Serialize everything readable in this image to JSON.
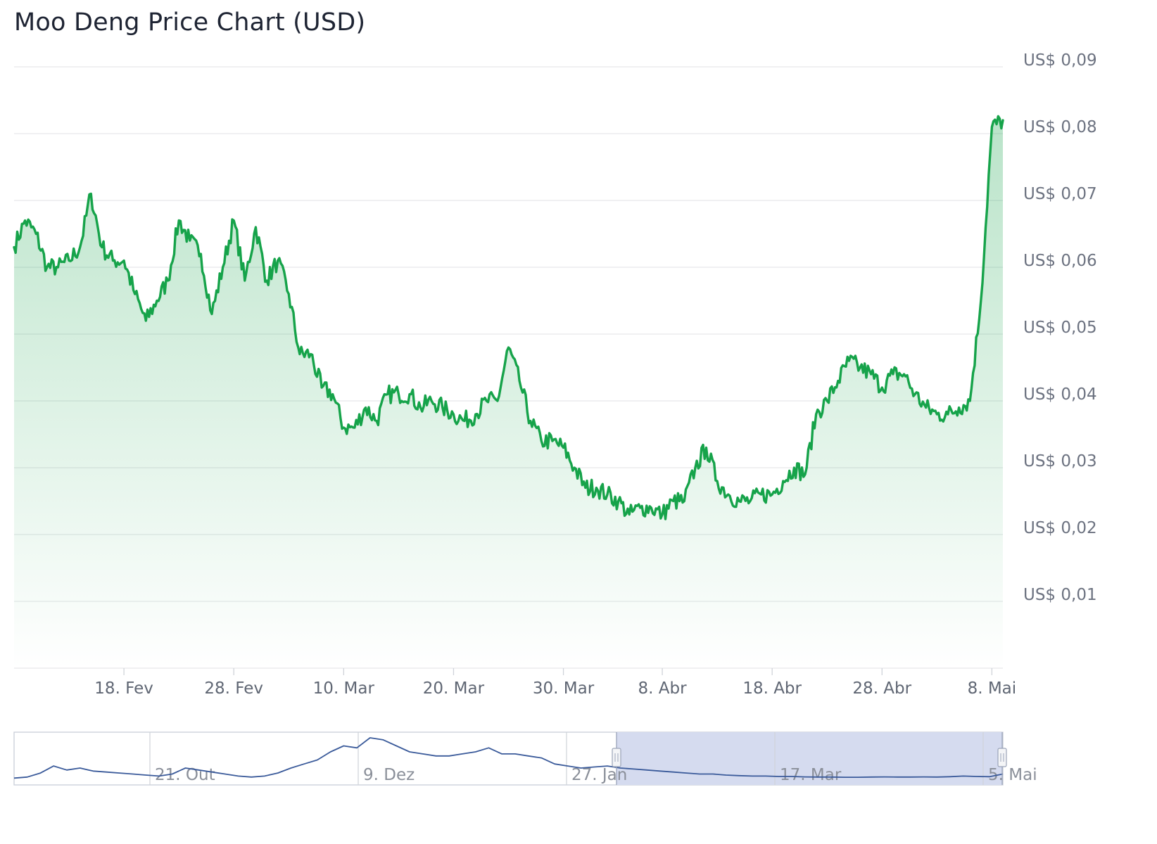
{
  "title": "Moo Deng Price Chart (USD)",
  "chart_data": [
    {
      "type": "area",
      "title": "Moo Deng Price Chart (USD)",
      "xlabel": "",
      "ylabel": "",
      "ylim": [
        0.0,
        0.09
      ],
      "y_ticks": [
        "US$ 0,09",
        "US$ 0,08",
        "US$ 0,07",
        "US$ 0,06",
        "US$ 0,05",
        "US$ 0,04",
        "US$ 0,03",
        "US$ 0,02",
        "US$ 0,01"
      ],
      "y_tick_values": [
        0.09,
        0.08,
        0.07,
        0.06,
        0.05,
        0.04,
        0.03,
        0.02,
        0.01
      ],
      "x_ticks": [
        "18. Fev",
        "28. Fev",
        "10. Mar",
        "20. Mar",
        "30. Mar",
        "8. Abr",
        "18. Abr",
        "28. Abr",
        "8. Mai"
      ],
      "x_tick_dates": [
        "2025-02-18",
        "2025-02-28",
        "2025-03-10",
        "2025-03-20",
        "2025-03-30",
        "2025-04-08",
        "2025-04-18",
        "2025-04-28",
        "2025-05-08"
      ],
      "grid": true,
      "legend": "none",
      "colors": {
        "line": "#16a34a",
        "fill_top": "#16a34a",
        "grid": "#e6e8eb"
      },
      "series": [
        {
          "x": [
            "2025-02-08",
            "2025-02-09",
            "2025-02-10",
            "2025-02-11",
            "2025-02-12",
            "2025-02-13",
            "2025-02-14",
            "2025-02-15",
            "2025-02-16",
            "2025-02-17",
            "2025-02-18",
            "2025-02-19",
            "2025-02-20",
            "2025-02-21",
            "2025-02-22",
            "2025-02-23",
            "2025-02-24",
            "2025-02-25",
            "2025-02-26",
            "2025-02-27",
            "2025-02-28",
            "2025-03-01",
            "2025-03-02",
            "2025-03-03",
            "2025-03-04",
            "2025-03-05",
            "2025-03-06",
            "2025-03-07",
            "2025-03-08",
            "2025-03-09",
            "2025-03-10",
            "2025-03-11",
            "2025-03-12",
            "2025-03-13",
            "2025-03-14",
            "2025-03-15",
            "2025-03-16",
            "2025-03-17",
            "2025-03-18",
            "2025-03-19",
            "2025-03-20",
            "2025-03-21",
            "2025-03-22",
            "2025-03-23",
            "2025-03-24",
            "2025-03-25",
            "2025-03-26",
            "2025-03-27",
            "2025-03-28",
            "2025-03-29",
            "2025-03-30",
            "2025-03-31",
            "2025-04-01",
            "2025-04-02",
            "2025-04-03",
            "2025-04-04",
            "2025-04-05",
            "2025-04-06",
            "2025-04-07",
            "2025-04-08",
            "2025-04-09",
            "2025-04-10",
            "2025-04-11",
            "2025-04-12",
            "2025-04-13",
            "2025-04-14",
            "2025-04-15",
            "2025-04-16",
            "2025-04-17",
            "2025-04-18",
            "2025-04-19",
            "2025-04-20",
            "2025-04-21",
            "2025-04-22",
            "2025-04-23",
            "2025-04-24",
            "2025-04-25",
            "2025-04-26",
            "2025-04-27",
            "2025-04-28",
            "2025-04-29",
            "2025-04-30",
            "2025-05-01",
            "2025-05-02",
            "2025-05-03",
            "2025-05-04",
            "2025-05-05",
            "2025-05-06",
            "2025-05-07",
            "2025-05-08",
            "2025-05-09"
          ],
          "values": [
            0.063,
            0.067,
            0.065,
            0.06,
            0.06,
            0.061,
            0.063,
            0.071,
            0.063,
            0.061,
            0.061,
            0.056,
            0.052,
            0.055,
            0.058,
            0.067,
            0.064,
            0.062,
            0.053,
            0.06,
            0.067,
            0.058,
            0.066,
            0.058,
            0.061,
            0.056,
            0.047,
            0.047,
            0.042,
            0.041,
            0.036,
            0.036,
            0.039,
            0.037,
            0.041,
            0.041,
            0.041,
            0.039,
            0.04,
            0.039,
            0.038,
            0.037,
            0.038,
            0.04,
            0.04,
            0.048,
            0.043,
            0.037,
            0.034,
            0.034,
            0.033,
            0.03,
            0.027,
            0.027,
            0.026,
            0.025,
            0.023,
            0.024,
            0.024,
            0.023,
            0.025,
            0.025,
            0.03,
            0.033,
            0.028,
            0.026,
            0.025,
            0.025,
            0.026,
            0.026,
            0.028,
            0.03,
            0.029,
            0.038,
            0.04,
            0.043,
            0.046,
            0.045,
            0.044,
            0.042,
            0.044,
            0.044,
            0.041,
            0.039,
            0.038,
            0.038,
            0.039,
            0.04,
            0.055,
            0.081,
            0.082
          ]
        }
      ]
    },
    {
      "type": "line",
      "role": "navigator",
      "x_ticks": [
        "21. Out",
        "9. Dez",
        "27. Jan",
        "17. Mar",
        "5. Mai"
      ],
      "selected_range": [
        "2025-02-08",
        "2025-05-09"
      ],
      "colors": {
        "line": "#3a5a9a",
        "selection": "#d5dbef"
      },
      "series": [
        {
          "values": [
            0.02,
            0.025,
            0.045,
            0.08,
            0.06,
            0.07,
            0.055,
            0.05,
            0.045,
            0.04,
            0.035,
            0.03,
            0.04,
            0.07,
            0.06,
            0.05,
            0.04,
            0.03,
            0.025,
            0.03,
            0.045,
            0.07,
            0.09,
            0.11,
            0.15,
            0.18,
            0.17,
            0.22,
            0.21,
            0.18,
            0.15,
            0.14,
            0.13,
            0.13,
            0.14,
            0.15,
            0.17,
            0.14,
            0.14,
            0.13,
            0.12,
            0.09,
            0.08,
            0.07,
            0.075,
            0.08,
            0.07,
            0.065,
            0.06,
            0.055,
            0.05,
            0.045,
            0.04,
            0.04,
            0.035,
            0.032,
            0.03,
            0.03,
            0.028,
            0.028,
            0.026,
            0.025,
            0.025,
            0.024,
            0.024,
            0.025,
            0.026,
            0.025,
            0.025,
            0.026,
            0.025,
            0.027,
            0.03,
            0.028,
            0.027,
            0.04
          ]
        }
      ]
    }
  ]
}
